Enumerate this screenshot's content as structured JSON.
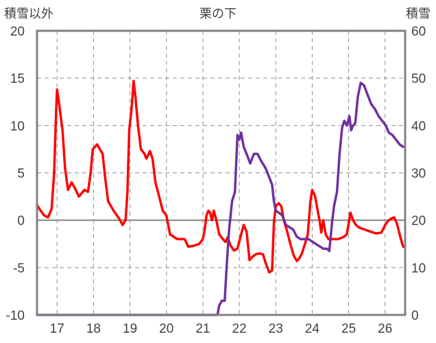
{
  "chart_data": {
    "type": "line",
    "title": "栗の下",
    "ylabel_left": "積雪以外",
    "ylabel_right": "積雪",
    "xlim": [
      16.45,
      26.55
    ],
    "ylim_left": [
      -10,
      20
    ],
    "ylim_right": [
      0,
      60
    ],
    "xticks": [
      17,
      18,
      19,
      20,
      21,
      22,
      23,
      24,
      25,
      26
    ],
    "yticks_left": [
      -10,
      -5,
      0,
      5,
      10,
      15,
      20
    ],
    "yticks_right": [
      0,
      10,
      20,
      30,
      40,
      50,
      60
    ],
    "grid": true,
    "series": [
      {
        "axis": "left",
        "color": "#ff0000",
        "points": [
          [
            16.45,
            1.6
          ],
          [
            16.55,
            1.0
          ],
          [
            16.65,
            0.5
          ],
          [
            16.75,
            0.3
          ],
          [
            16.85,
            1.2
          ],
          [
            16.92,
            5.0
          ],
          [
            16.97,
            11.0
          ],
          [
            17.0,
            13.8
          ],
          [
            17.05,
            12.5
          ],
          [
            17.15,
            9.5
          ],
          [
            17.22,
            5.5
          ],
          [
            17.3,
            3.2
          ],
          [
            17.4,
            4.0
          ],
          [
            17.5,
            3.3
          ],
          [
            17.6,
            2.5
          ],
          [
            17.75,
            3.2
          ],
          [
            17.85,
            3.0
          ],
          [
            17.92,
            5.0
          ],
          [
            17.98,
            7.5
          ],
          [
            18.1,
            8.0
          ],
          [
            18.25,
            7.0
          ],
          [
            18.32,
            4.5
          ],
          [
            18.4,
            2.0
          ],
          [
            18.55,
            1.0
          ],
          [
            18.7,
            0.2
          ],
          [
            18.8,
            -0.5
          ],
          [
            18.88,
            0.0
          ],
          [
            18.93,
            3.0
          ],
          [
            18.98,
            9.5
          ],
          [
            19.05,
            12.0
          ],
          [
            19.1,
            14.7
          ],
          [
            19.15,
            13.0
          ],
          [
            19.22,
            10.0
          ],
          [
            19.3,
            7.5
          ],
          [
            19.4,
            7.0
          ],
          [
            19.45,
            6.5
          ],
          [
            19.55,
            7.3
          ],
          [
            19.62,
            6.5
          ],
          [
            19.7,
            4.0
          ],
          [
            19.8,
            2.5
          ],
          [
            19.9,
            1.0
          ],
          [
            20.0,
            0.5
          ],
          [
            20.1,
            -1.5
          ],
          [
            20.3,
            -2.0
          ],
          [
            20.5,
            -2.0
          ],
          [
            20.6,
            -2.8
          ],
          [
            20.75,
            -2.7
          ],
          [
            20.9,
            -2.5
          ],
          [
            21.0,
            -2.0
          ],
          [
            21.05,
            -1.0
          ],
          [
            21.1,
            0.5
          ],
          [
            21.15,
            1.0
          ],
          [
            21.2,
            0.8
          ],
          [
            21.25,
            0.0
          ],
          [
            21.3,
            1.0
          ],
          [
            21.37,
            0.0
          ],
          [
            21.45,
            -1.5
          ],
          [
            21.55,
            -2.0
          ],
          [
            21.62,
            -2.3
          ],
          [
            21.68,
            -1.8
          ],
          [
            21.75,
            -2.6
          ],
          [
            21.85,
            -3.2
          ],
          [
            21.95,
            -3.0
          ],
          [
            22.05,
            -1.5
          ],
          [
            22.12,
            -0.5
          ],
          [
            22.2,
            -1.2
          ],
          [
            22.28,
            -4.2
          ],
          [
            22.35,
            -3.9
          ],
          [
            22.45,
            -3.6
          ],
          [
            22.55,
            -3.5
          ],
          [
            22.65,
            -3.6
          ],
          [
            22.72,
            -4.5
          ],
          [
            22.82,
            -5.5
          ],
          [
            22.9,
            -5.3
          ],
          [
            22.95,
            -0.2
          ],
          [
            23.0,
            1.5
          ],
          [
            23.08,
            1.8
          ],
          [
            23.15,
            1.5
          ],
          [
            23.22,
            0.0
          ],
          [
            23.3,
            -1.0
          ],
          [
            23.4,
            -2.5
          ],
          [
            23.5,
            -3.8
          ],
          [
            23.58,
            -4.3
          ],
          [
            23.65,
            -4.0
          ],
          [
            23.72,
            -3.5
          ],
          [
            23.8,
            -2.5
          ],
          [
            23.88,
            -1.5
          ],
          [
            23.95,
            2.0
          ],
          [
            24.0,
            3.2
          ],
          [
            24.08,
            2.5
          ],
          [
            24.15,
            1.0
          ],
          [
            24.2,
            0.0
          ],
          [
            24.25,
            -1.3
          ],
          [
            24.3,
            0.0
          ],
          [
            24.37,
            -1.5
          ],
          [
            24.45,
            -2.0
          ],
          [
            24.55,
            -2.0
          ],
          [
            24.7,
            -2.0
          ],
          [
            24.85,
            -1.8
          ],
          [
            24.95,
            -1.5
          ],
          [
            25.05,
            0.8
          ],
          [
            25.12,
            0.0
          ],
          [
            25.2,
            -0.5
          ],
          [
            25.3,
            -0.8
          ],
          [
            25.45,
            -1.0
          ],
          [
            25.6,
            -1.2
          ],
          [
            25.75,
            -1.4
          ],
          [
            25.9,
            -1.3
          ],
          [
            26.0,
            -0.5
          ],
          [
            26.1,
            0.0
          ],
          [
            26.18,
            0.2
          ],
          [
            26.25,
            0.3
          ],
          [
            26.32,
            -0.3
          ],
          [
            26.4,
            -1.5
          ],
          [
            26.47,
            -2.5
          ],
          [
            26.5,
            -2.8
          ]
        ]
      },
      {
        "axis": "right",
        "color": "#7030a0",
        "points": [
          [
            16.45,
            0.0
          ],
          [
            21.4,
            0.0
          ],
          [
            21.45,
            2.0
          ],
          [
            21.52,
            3.0
          ],
          [
            21.6,
            3.0
          ],
          [
            21.65,
            10.0
          ],
          [
            21.72,
            18.0
          ],
          [
            21.8,
            24.0
          ],
          [
            21.88,
            26.0
          ],
          [
            21.95,
            38.0
          ],
          [
            22.0,
            37.0
          ],
          [
            22.05,
            38.5
          ],
          [
            22.12,
            35.5
          ],
          [
            22.2,
            34.0
          ],
          [
            22.3,
            32.0
          ],
          [
            22.4,
            34.0
          ],
          [
            22.5,
            34.0
          ],
          [
            22.6,
            32.5
          ],
          [
            22.72,
            31.0
          ],
          [
            22.8,
            29.5
          ],
          [
            22.9,
            27.5
          ],
          [
            22.95,
            24.0
          ],
          [
            23.0,
            22.0
          ],
          [
            23.1,
            21.5
          ],
          [
            23.18,
            21.0
          ],
          [
            23.28,
            19.0
          ],
          [
            23.38,
            18.5
          ],
          [
            23.48,
            18.0
          ],
          [
            23.58,
            16.5
          ],
          [
            23.68,
            16.0
          ],
          [
            23.78,
            16.0
          ],
          [
            23.9,
            16.0
          ],
          [
            24.0,
            15.5
          ],
          [
            24.1,
            15.0
          ],
          [
            24.2,
            14.5
          ],
          [
            24.3,
            14.0
          ],
          [
            24.4,
            14.0
          ],
          [
            24.47,
            13.5
          ],
          [
            24.55,
            20.0
          ],
          [
            24.6,
            23.0
          ],
          [
            24.68,
            26.0
          ],
          [
            24.75,
            34.0
          ],
          [
            24.82,
            39.5
          ],
          [
            24.88,
            41.0
          ],
          [
            24.95,
            40.0
          ],
          [
            25.02,
            42.0
          ],
          [
            25.07,
            39.0
          ],
          [
            25.12,
            40.0
          ],
          [
            25.18,
            40.5
          ],
          [
            25.25,
            46.0
          ],
          [
            25.33,
            49.0
          ],
          [
            25.42,
            48.5
          ],
          [
            25.52,
            46.5
          ],
          [
            25.62,
            44.5
          ],
          [
            25.72,
            43.5
          ],
          [
            25.82,
            42.0
          ],
          [
            25.92,
            41.0
          ],
          [
            26.02,
            40.0
          ],
          [
            26.1,
            38.5
          ],
          [
            26.2,
            38.0
          ],
          [
            26.3,
            37.0
          ],
          [
            26.4,
            36.0
          ],
          [
            26.5,
            35.5
          ]
        ]
      }
    ]
  }
}
